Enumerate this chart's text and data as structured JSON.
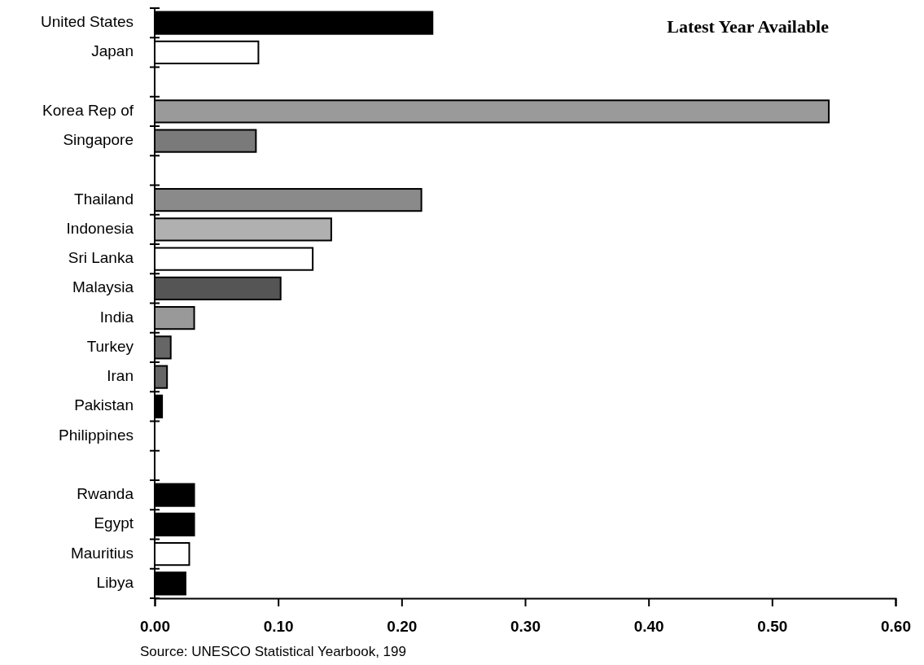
{
  "chart_data": {
    "type": "bar",
    "orientation": "horizontal",
    "title": "Latest Year Available",
    "categories": [
      "United States",
      "Japan",
      null,
      "Korea Rep of",
      "Singapore",
      null,
      "Thailand",
      "Indonesia",
      "Sri Lanka",
      "Malaysia",
      "India",
      "Turkey",
      "Iran",
      "Pakistan",
      "Philippines",
      null,
      "Rwanda",
      "Egypt",
      "Mauritius",
      "Libya"
    ],
    "values": [
      0.225,
      0.084,
      null,
      0.546,
      0.082,
      null,
      0.216,
      0.143,
      0.128,
      0.102,
      0.032,
      0.013,
      0.01,
      0.006,
      null,
      null,
      0.032,
      0.032,
      0.028,
      0.025
    ],
    "colors": [
      "#000000",
      "#ffffff",
      null,
      "#9a9a9a",
      "#7a7a7a",
      null,
      "#8a8a8a",
      "#b0b0b0",
      "#ffffff",
      "#555555",
      "#999999",
      "#666666",
      "#666666",
      "#000000",
      null,
      null,
      "#000000",
      "#000000",
      "#ffffff",
      "#000000"
    ],
    "xlim": [
      0,
      0.6
    ],
    "xticks": [
      {
        "value": 0,
        "label": "0.00"
      },
      {
        "value": 0.1,
        "label": "0.10"
      },
      {
        "value": 0.2,
        "label": "0.20"
      },
      {
        "value": 0.3,
        "label": "0.30"
      },
      {
        "value": 0.4,
        "label": "0.40"
      },
      {
        "value": 0.5,
        "label": "0.50"
      },
      {
        "value": 0.6,
        "label": "0.60"
      }
    ],
    "annotations": [
      "Source: UNESCO Statistical Yearbook, 199"
    ]
  }
}
